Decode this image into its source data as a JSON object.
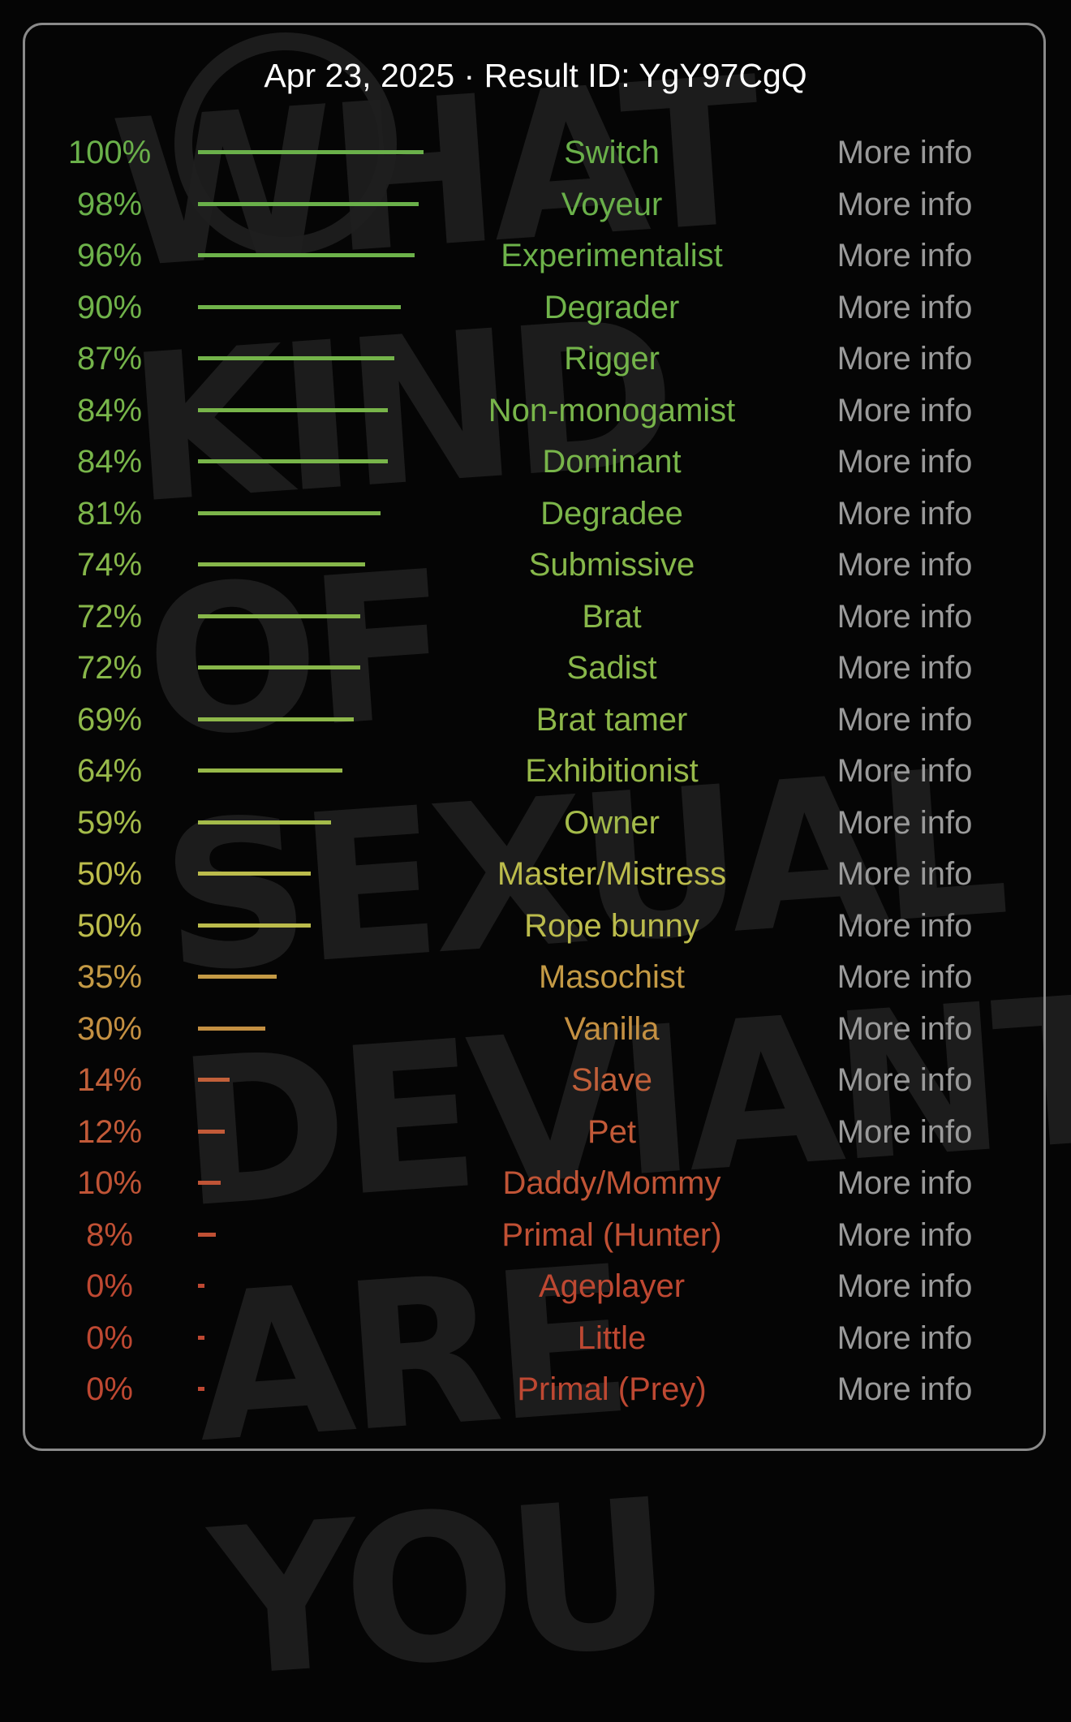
{
  "watermark": "WHAT KIND OF SEXUAL DEVIANT ARE YOU",
  "header": {
    "title": "Apr 23, 2025 · Result ID: YgY97CgQ"
  },
  "more_info_label": "More info",
  "results": [
    {
      "percent": 100,
      "label": "100%",
      "name": "Switch",
      "color": "#6ab04a"
    },
    {
      "percent": 98,
      "label": "98%",
      "name": "Voyeur",
      "color": "#6ab04a"
    },
    {
      "percent": 96,
      "label": "96%",
      "name": "Experimentalist",
      "color": "#6db24a"
    },
    {
      "percent": 90,
      "label": "90%",
      "name": "Degrader",
      "color": "#70b34a"
    },
    {
      "percent": 87,
      "label": "87%",
      "name": "Rigger",
      "color": "#74b44a"
    },
    {
      "percent": 84,
      "label": "84%",
      "name": "Non-monogamist",
      "color": "#78b54a"
    },
    {
      "percent": 84,
      "label": "84%",
      "name": "Dominant",
      "color": "#78b54a"
    },
    {
      "percent": 81,
      "label": "81%",
      "name": "Degradee",
      "color": "#7cb54a"
    },
    {
      "percent": 74,
      "label": "74%",
      "name": "Submissive",
      "color": "#86b74a"
    },
    {
      "percent": 72,
      "label": "72%",
      "name": "Brat",
      "color": "#88b74a"
    },
    {
      "percent": 72,
      "label": "72%",
      "name": "Sadist",
      "color": "#88b74a"
    },
    {
      "percent": 69,
      "label": "69%",
      "name": "Brat tamer",
      "color": "#8eb84a"
    },
    {
      "percent": 64,
      "label": "64%",
      "name": "Exhibitionist",
      "color": "#98b94a"
    },
    {
      "percent": 59,
      "label": "59%",
      "name": "Owner",
      "color": "#a4bb4a"
    },
    {
      "percent": 50,
      "label": "50%",
      "name": "Master/Mistress",
      "color": "#bcbc4c"
    },
    {
      "percent": 50,
      "label": "50%",
      "name": "Rope bunny",
      "color": "#bcbc4c"
    },
    {
      "percent": 35,
      "label": "35%",
      "name": "Masochist",
      "color": "#c49a45"
    },
    {
      "percent": 30,
      "label": "30%",
      "name": "Vanilla",
      "color": "#c49042"
    },
    {
      "percent": 14,
      "label": "14%",
      "name": "Slave",
      "color": "#c2603a"
    },
    {
      "percent": 12,
      "label": "12%",
      "name": "Pet",
      "color": "#c25a38"
    },
    {
      "percent": 10,
      "label": "10%",
      "name": "Daddy/Mommy",
      "color": "#c05436"
    },
    {
      "percent": 8,
      "label": "8%",
      "name": "Primal (Hunter)",
      "color": "#c05034"
    },
    {
      "percent": 0,
      "label": "0%",
      "name": "Ageplayer",
      "color": "#be4832"
    },
    {
      "percent": 0,
      "label": "0%",
      "name": "Little",
      "color": "#be4832"
    },
    {
      "percent": 0,
      "label": "0%",
      "name": "Primal (Prey)",
      "color": "#be4832"
    }
  ]
}
